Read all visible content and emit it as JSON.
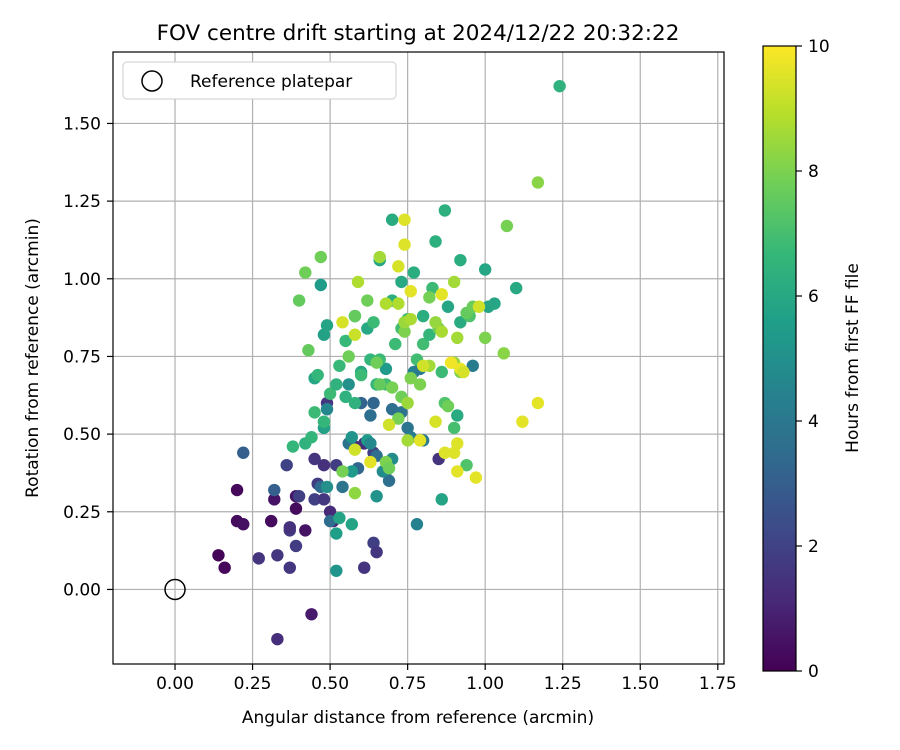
{
  "chart_data": {
    "type": "scatter",
    "title": "FOV centre drift starting at 2024/12/22 20:32:22",
    "xlabel": "Angular distance from reference (arcmin)",
    "ylabel": "Rotation from reference (arcmin)",
    "xlim": [
      -0.2,
      1.77
    ],
    "ylim": [
      -0.24,
      1.73
    ],
    "xticks": [
      "0.00",
      "0.25",
      "0.50",
      "0.75",
      "1.00",
      "1.25",
      "1.50",
      "1.75"
    ],
    "yticks": [
      "0.00",
      "0.25",
      "0.50",
      "0.75",
      "1.00",
      "1.25",
      "1.50"
    ],
    "grid": true,
    "legend": {
      "placement": "top-left",
      "entries": [
        "Reference platepar"
      ]
    },
    "reference_point": {
      "x": 0.0,
      "y": 0.0
    },
    "colorbar": {
      "label": "Hours from first FF file",
      "range": [
        0,
        10
      ],
      "ticks": [
        "0",
        "2",
        "4",
        "6",
        "8",
        "10"
      ],
      "colormap": "viridis"
    },
    "colors": {
      "viridis": [
        "#440154",
        "#482878",
        "#3e4989",
        "#31688e",
        "#26828e",
        "#1f9e89",
        "#35b779",
        "#6ece58",
        "#b5de2b",
        "#fde725"
      ]
    },
    "points": [
      [
        0.14,
        0.11,
        0.1
      ],
      [
        0.16,
        0.07,
        0.2
      ],
      [
        0.2,
        0.22,
        0.3
      ],
      [
        0.2,
        0.32,
        0.2
      ],
      [
        0.22,
        0.21,
        0.4
      ],
      [
        0.31,
        0.22,
        0.3
      ],
      [
        0.32,
        0.29,
        0.5
      ],
      [
        0.39,
        0.26,
        0.3
      ],
      [
        0.39,
        0.3,
        0.6
      ],
      [
        0.42,
        0.19,
        0.5
      ],
      [
        0.44,
        -0.08,
        0.7
      ],
      [
        0.33,
        -0.16,
        1.3
      ],
      [
        0.27,
        0.1,
        1.5
      ],
      [
        0.33,
        0.11,
        1.6
      ],
      [
        0.37,
        0.07,
        1.6
      ],
      [
        0.37,
        0.19,
        1.7
      ],
      [
        0.37,
        0.2,
        1.4
      ],
      [
        0.39,
        0.14,
        1.8
      ],
      [
        0.4,
        0.3,
        1.9
      ],
      [
        0.36,
        0.4,
        2.0
      ],
      [
        0.45,
        0.29,
        1.9
      ],
      [
        0.46,
        0.34,
        1.8
      ],
      [
        0.48,
        0.29,
        1.6
      ],
      [
        0.48,
        0.4,
        1.4
      ],
      [
        0.5,
        0.25,
        1.2
      ],
      [
        0.52,
        0.4,
        1.8
      ],
      [
        0.49,
        0.6,
        1.6
      ],
      [
        0.51,
        0.22,
        1.0
      ],
      [
        0.45,
        0.42,
        1.5
      ],
      [
        0.58,
        0.46,
        1.2
      ],
      [
        0.61,
        0.07,
        1.5
      ],
      [
        0.61,
        0.47,
        1.3
      ],
      [
        0.64,
        0.15,
        1.9
      ],
      [
        0.65,
        0.12,
        1.6
      ],
      [
        0.64,
        0.44,
        1.9
      ],
      [
        0.85,
        0.42,
        1.5
      ],
      [
        0.22,
        0.44,
        3.0
      ],
      [
        0.32,
        0.32,
        3.0
      ],
      [
        0.47,
        0.33,
        3.4
      ],
      [
        0.5,
        0.22,
        3.5
      ],
      [
        0.54,
        0.33,
        3.8
      ],
      [
        0.56,
        0.47,
        3.8
      ],
      [
        0.59,
        0.39,
        3.3
      ],
      [
        0.6,
        0.6,
        3.2
      ],
      [
        0.63,
        0.56,
        3.6
      ],
      [
        0.64,
        0.6,
        3.3
      ],
      [
        0.65,
        0.43,
        3.6
      ],
      [
        0.68,
        0.38,
        3.6
      ],
      [
        0.69,
        0.35,
        3.6
      ],
      [
        0.7,
        0.58,
        3.6
      ],
      [
        0.73,
        0.57,
        3.8
      ],
      [
        0.75,
        0.52,
        3.9
      ],
      [
        0.76,
        0.49,
        4.2
      ],
      [
        0.77,
        0.7,
        4.4
      ],
      [
        0.78,
        0.21,
        4.4
      ],
      [
        0.8,
        0.48,
        4.2
      ],
      [
        0.79,
        0.71,
        4.1
      ],
      [
        0.96,
        0.72,
        4.2
      ],
      [
        0.49,
        0.58,
        4.6
      ],
      [
        0.49,
        0.33,
        5.0
      ],
      [
        0.52,
        0.06,
        5.2
      ],
      [
        0.57,
        0.49,
        5.2
      ],
      [
        0.56,
        0.66,
        5.0
      ],
      [
        0.62,
        0.48,
        5.5
      ],
      [
        0.63,
        0.47,
        4.7
      ],
      [
        0.65,
        0.3,
        5.1
      ],
      [
        0.67,
        0.38,
        4.8
      ],
      [
        0.7,
        0.42,
        4.9
      ],
      [
        0.65,
        0.66,
        5.3
      ],
      [
        0.68,
        0.71,
        5.4
      ],
      [
        0.52,
        0.18,
        5.6
      ],
      [
        0.53,
        0.23,
        5.8
      ],
      [
        0.57,
        0.21,
        5.8
      ],
      [
        0.57,
        0.38,
        5.4
      ],
      [
        0.45,
        0.68,
        5.9
      ],
      [
        0.48,
        0.52,
        5.7
      ],
      [
        0.48,
        0.82,
        5.7
      ],
      [
        0.49,
        0.85,
        5.8
      ],
      [
        0.47,
        0.98,
        5.5
      ],
      [
        0.58,
        0.88,
        5.8
      ],
      [
        0.6,
        0.7,
        5.9
      ],
      [
        0.62,
        0.84,
        6.0
      ],
      [
        0.66,
        1.06,
        5.9
      ],
      [
        0.7,
        0.93,
        6.2
      ],
      [
        0.7,
        1.19,
        6.1
      ],
      [
        0.73,
        0.99,
        6.0
      ],
      [
        0.77,
        1.02,
        6.2
      ],
      [
        0.8,
        0.88,
        6.2
      ],
      [
        0.84,
        1.12,
        6.3
      ],
      [
        0.87,
        1.22,
        6.3
      ],
      [
        0.88,
        0.91,
        5.9
      ],
      [
        0.86,
        0.29,
        5.8
      ],
      [
        0.91,
        0.56,
        6.1
      ],
      [
        0.92,
        1.06,
        6.2
      ],
      [
        0.92,
        0.86,
        6.1
      ],
      [
        1.0,
        1.03,
        5.9
      ],
      [
        1.01,
        0.91,
        5.8
      ],
      [
        1.03,
        0.92,
        5.9
      ],
      [
        1.1,
        0.97,
        6.0
      ],
      [
        1.24,
        1.62,
        6.4
      ],
      [
        0.38,
        0.46,
        6.6
      ],
      [
        0.42,
        0.47,
        6.4
      ],
      [
        0.44,
        0.49,
        6.6
      ],
      [
        0.45,
        0.57,
        6.8
      ],
      [
        0.46,
        0.69,
        6.6
      ],
      [
        0.48,
        0.54,
        6.6
      ],
      [
        0.5,
        0.63,
        6.8
      ],
      [
        0.52,
        0.66,
        6.4
      ],
      [
        0.53,
        0.72,
        6.7
      ],
      [
        0.55,
        0.8,
        6.7
      ],
      [
        0.55,
        0.62,
        6.4
      ],
      [
        0.58,
        0.6,
        6.4
      ],
      [
        0.6,
        0.69,
        6.8
      ],
      [
        0.63,
        0.74,
        6.6
      ],
      [
        0.64,
        0.86,
        6.8
      ],
      [
        0.65,
        0.66,
        6.6
      ],
      [
        0.66,
        0.74,
        6.8
      ],
      [
        0.68,
        0.66,
        6.9
      ],
      [
        0.71,
        0.79,
        6.8
      ],
      [
        0.73,
        0.84,
        6.9
      ],
      [
        0.75,
        0.87,
        6.8
      ],
      [
        0.78,
        0.74,
        6.9
      ],
      [
        0.8,
        0.79,
        6.9
      ],
      [
        0.82,
        0.82,
        6.6
      ],
      [
        0.83,
        0.97,
        6.8
      ],
      [
        0.86,
        0.7,
        6.8
      ],
      [
        0.87,
        0.6,
        7.2
      ],
      [
        0.9,
        0.52,
        7.0
      ],
      [
        0.94,
        0.4,
        7.2
      ],
      [
        0.95,
        0.88,
        7.2
      ],
      [
        0.4,
        0.93,
        7.6
      ],
      [
        0.42,
        1.02,
        7.8
      ],
      [
        0.43,
        0.77,
        7.6
      ],
      [
        0.47,
        1.07,
        7.8
      ],
      [
        0.54,
        0.38,
        7.9
      ],
      [
        0.56,
        0.75,
        7.8
      ],
      [
        0.58,
        0.88,
        7.6
      ],
      [
        0.62,
        0.93,
        7.8
      ],
      [
        0.65,
        0.73,
        7.8
      ],
      [
        0.66,
        0.66,
        7.6
      ],
      [
        0.68,
        0.41,
        8.0
      ],
      [
        0.69,
        0.39,
        7.8
      ],
      [
        0.7,
        0.65,
        7.9
      ],
      [
        0.72,
        0.55,
        7.9
      ],
      [
        0.73,
        0.62,
        7.8
      ],
      [
        0.74,
        0.83,
        8.0
      ],
      [
        0.76,
        0.68,
        8.0
      ],
      [
        0.79,
        0.66,
        8.0
      ],
      [
        0.82,
        0.94,
        7.9
      ],
      [
        0.85,
        0.84,
        7.7
      ],
      [
        0.88,
        0.59,
        7.8
      ],
      [
        0.92,
        0.7,
        8.0
      ],
      [
        0.94,
        0.89,
        7.6
      ],
      [
        0.96,
        0.91,
        7.7
      ],
      [
        1.0,
        0.81,
        8.0
      ],
      [
        1.06,
        0.76,
        8.2
      ],
      [
        1.07,
        1.17,
        7.9
      ],
      [
        1.17,
        1.31,
        8.2
      ],
      [
        0.58,
        0.31,
        8.3
      ],
      [
        0.75,
        0.6,
        8.5
      ],
      [
        0.75,
        0.48,
        8.6
      ],
      [
        0.59,
        0.99,
        8.8
      ],
      [
        0.66,
        1.07,
        8.6
      ],
      [
        0.68,
        0.92,
        8.8
      ],
      [
        0.72,
        0.92,
        8.8
      ],
      [
        0.74,
        0.86,
        8.5
      ],
      [
        0.76,
        0.87,
        8.7
      ],
      [
        0.82,
        0.72,
        8.6
      ],
      [
        0.84,
        0.86,
        8.4
      ],
      [
        0.86,
        0.83,
        8.7
      ],
      [
        0.9,
        0.99,
        8.6
      ],
      [
        0.9,
        0.73,
        8.4
      ],
      [
        0.91,
        0.81,
        8.6
      ],
      [
        0.54,
        0.86,
        9.4
      ],
      [
        0.58,
        0.82,
        9.2
      ],
      [
        0.58,
        0.45,
        9.3
      ],
      [
        0.63,
        0.41,
        9.6
      ],
      [
        0.69,
        0.53,
        9.3
      ],
      [
        0.72,
        1.04,
        9.4
      ],
      [
        0.74,
        1.11,
        9.5
      ],
      [
        0.74,
        1.19,
        9.5
      ],
      [
        0.76,
        0.96,
        9.6
      ],
      [
        0.79,
        0.48,
        9.6
      ],
      [
        0.84,
        0.54,
        9.4
      ],
      [
        0.86,
        0.95,
        9.6
      ],
      [
        0.87,
        0.44,
        9.5
      ],
      [
        0.89,
        0.73,
        9.8
      ],
      [
        0.9,
        0.44,
        9.5
      ],
      [
        0.91,
        0.38,
        9.6
      ],
      [
        0.91,
        0.47,
        9.5
      ],
      [
        0.92,
        0.71,
        9.7
      ],
      [
        0.93,
        0.7,
        9.4
      ],
      [
        0.97,
        0.36,
        9.6
      ],
      [
        0.98,
        0.91,
        9.3
      ],
      [
        1.12,
        0.54,
        9.6
      ],
      [
        1.17,
        0.6,
        9.6
      ],
      [
        0.8,
        0.72,
        9.3
      ]
    ]
  }
}
